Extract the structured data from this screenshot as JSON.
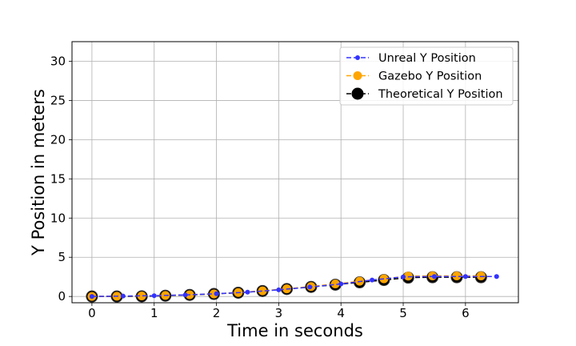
{
  "chart_data": {
    "type": "line",
    "title": "",
    "xlabel": "Time in seconds",
    "ylabel": "Y Position in meters",
    "xlim": [
      -0.32,
      6.85
    ],
    "ylim": [
      -0.8,
      32.5
    ],
    "xticks": [
      0,
      1,
      2,
      3,
      4,
      5,
      6
    ],
    "yticks": [
      0,
      5,
      10,
      15,
      20,
      25,
      30
    ],
    "grid": true,
    "legend_position": "top-right",
    "series": [
      {
        "name": "Unreal Y Position",
        "color": "#3333ff",
        "line_style": "dashed",
        "marker": "small-circle",
        "x": [
          0.0,
          0.5,
          1.0,
          1.5,
          2.0,
          2.5,
          3.0,
          3.5,
          4.0,
          4.5,
          5.0,
          5.5,
          6.0,
          6.5
        ],
        "y": [
          0.0,
          0.05,
          0.1,
          0.2,
          0.35,
          0.55,
          0.85,
          1.2,
          1.6,
          2.1,
          2.5,
          2.55,
          2.55,
          2.55
        ]
      },
      {
        "name": "Gazebo Y Position",
        "color": "#ffa500",
        "line_style": "dashed",
        "marker": "medium-circle",
        "x": [
          0.0,
          0.4,
          0.8,
          1.18,
          1.57,
          1.96,
          2.35,
          2.74,
          3.13,
          3.52,
          3.91,
          4.3,
          4.69,
          5.08,
          5.47,
          5.86,
          6.25
        ],
        "y": [
          0.0,
          0.03,
          0.07,
          0.13,
          0.22,
          0.33,
          0.5,
          0.72,
          0.98,
          1.27,
          1.6,
          1.95,
          2.25,
          2.6,
          2.62,
          2.62,
          2.62
        ]
      },
      {
        "name": "Theoretical Y Position",
        "color": "#000000",
        "line_style": "dashed",
        "marker": "large-circle",
        "x": [
          0.0,
          0.4,
          0.8,
          1.18,
          1.57,
          1.96,
          2.35,
          2.74,
          3.13,
          3.52,
          3.91,
          4.3,
          4.69,
          5.08,
          5.47,
          5.86,
          6.25
        ],
        "y": [
          0.0,
          0.0,
          0.02,
          0.1,
          0.2,
          0.32,
          0.48,
          0.7,
          0.95,
          1.22,
          1.5,
          1.8,
          2.1,
          2.4,
          2.45,
          2.45,
          2.45
        ]
      }
    ]
  }
}
